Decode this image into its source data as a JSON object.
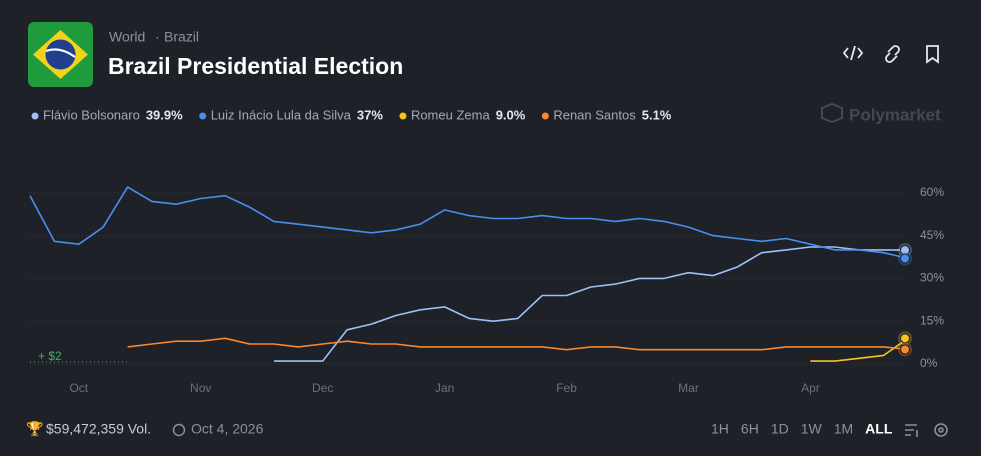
{
  "breadcrumb": [
    "World",
    "Brazil"
  ],
  "brand": "Polymarket",
  "footer": {
    "volume": "$59,472,359 Vol.",
    "date": "Oct 4, 2026",
    "ranges": [
      "1H",
      "6H",
      "1D",
      "1W",
      "1M",
      "ALL"
    ],
    "active_range": "ALL"
  },
  "chart_data": {
    "type": "line",
    "title": "Brazil Presidential Election",
    "annotation": "+ $2",
    "categories": [
      null,
      null,
      "Oct",
      null,
      null,
      null,
      null,
      "Nov",
      null,
      null,
      null,
      null,
      "Dec",
      null,
      null,
      null,
      null,
      "Jan",
      null,
      null,
      null,
      null,
      "Feb",
      null,
      null,
      null,
      null,
      "Mar",
      null,
      null,
      null,
      null,
      "Apr",
      null,
      null,
      null,
      null
    ],
    "ylim": [
      0,
      68
    ],
    "yticks": [
      {
        "value": 0,
        "label": "0%"
      },
      {
        "value": 15,
        "label": "15%"
      },
      {
        "value": 30,
        "label": "30%"
      },
      {
        "value": 45,
        "label": "45%"
      },
      {
        "value": 60,
        "label": "60%"
      }
    ],
    "grid": true,
    "series": [
      {
        "name": "Flávio Bolsonaro",
        "color": "#9cc0f7",
        "current": {
          "value": 39.9,
          "label": "39.9%"
        },
        "values": [
          null,
          null,
          null,
          null,
          null,
          null,
          null,
          null,
          null,
          null,
          1,
          1,
          1,
          12,
          14,
          17,
          19,
          20,
          16,
          15,
          16,
          24,
          24,
          27,
          28,
          30,
          30,
          32,
          31,
          34,
          39,
          40,
          41,
          41,
          40,
          40,
          39.9
        ]
      },
      {
        "name": "Luiz Inácio Lula da Silva",
        "color": "#4a8ef0",
        "current": {
          "value": 37,
          "label": "37%"
        },
        "values": [
          59,
          43,
          42,
          48,
          62,
          57,
          56,
          58,
          59,
          55,
          50,
          49,
          48,
          47,
          46,
          47,
          49,
          54,
          52,
          51,
          51,
          52,
          51,
          51,
          50,
          51,
          50,
          48,
          45,
          44,
          43,
          44,
          42,
          40,
          40,
          39,
          37
        ]
      },
      {
        "name": "Romeu Zema",
        "color": "#f5c518",
        "current": {
          "value": 9.0,
          "label": "9.0%"
        },
        "values": [
          null,
          null,
          null,
          null,
          null,
          null,
          null,
          null,
          null,
          null,
          null,
          null,
          null,
          null,
          null,
          null,
          null,
          null,
          null,
          null,
          null,
          null,
          null,
          null,
          null,
          null,
          null,
          null,
          null,
          null,
          null,
          null,
          1,
          1,
          2,
          3,
          9.0
        ]
      },
      {
        "name": "Renan Santos",
        "color": "#f7882f",
        "current": {
          "value": 5.1,
          "label": "5.1%"
        },
        "values": [
          null,
          null,
          null,
          null,
          6,
          7,
          8,
          8,
          9,
          7,
          7,
          6,
          7,
          8,
          7,
          7,
          6,
          6,
          6,
          6,
          6,
          6,
          5,
          6,
          6,
          5,
          5,
          5,
          5,
          5,
          5,
          6,
          6,
          6,
          6,
          6,
          5.1
        ]
      }
    ]
  }
}
